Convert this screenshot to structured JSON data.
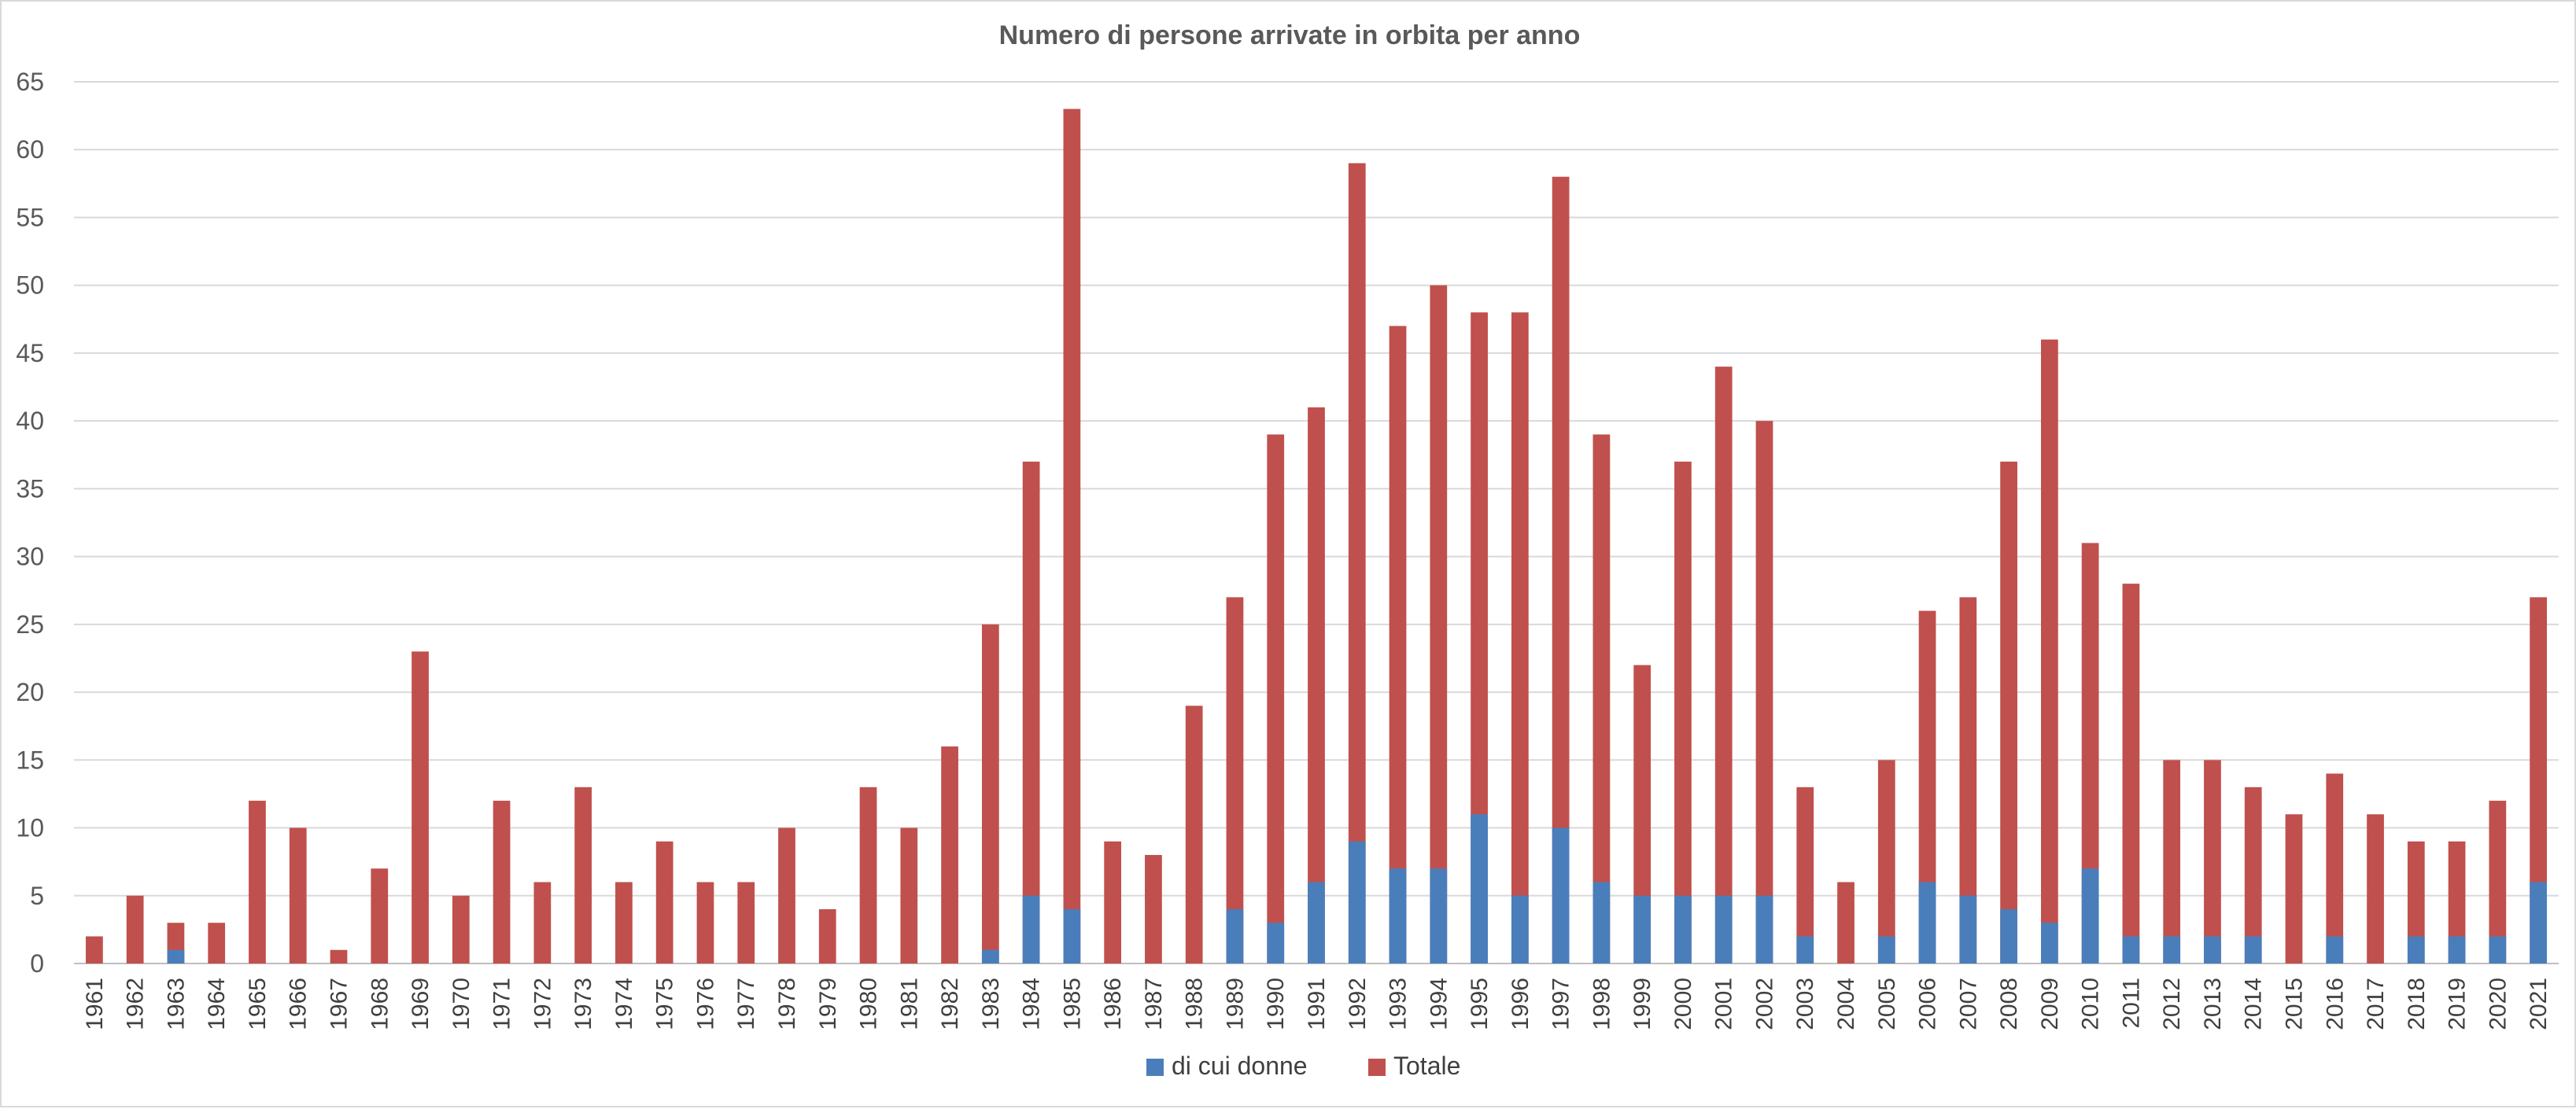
{
  "chart_data": {
    "type": "bar",
    "stacked": "overlap",
    "title": "Numero di persone arrivate in orbita per anno",
    "xlabel": "",
    "ylabel": "",
    "ylim": [
      0,
      65
    ],
    "ytick_step": 5,
    "grid": true,
    "legend_position": "bottom",
    "categories": [
      "1961",
      "1962",
      "1963",
      "1964",
      "1965",
      "1966",
      "1967",
      "1968",
      "1969",
      "1970",
      "1971",
      "1972",
      "1973",
      "1974",
      "1975",
      "1976",
      "1977",
      "1978",
      "1979",
      "1980",
      "1981",
      "1982",
      "1983",
      "1984",
      "1985",
      "1986",
      "1987",
      "1988",
      "1989",
      "1990",
      "1991",
      "1992",
      "1993",
      "1994",
      "1995",
      "1996",
      "1997",
      "1998",
      "1999",
      "2000",
      "2001",
      "2002",
      "2003",
      "2004",
      "2005",
      "2006",
      "2007",
      "2008",
      "2009",
      "2010",
      "2011",
      "2012",
      "2013",
      "2014",
      "2015",
      "2016",
      "2017",
      "2018",
      "2019",
      "2020",
      "2021"
    ],
    "series": [
      {
        "name": "di cui donne",
        "color": "#4a7ebb",
        "values": [
          0,
          0,
          1,
          0,
          0,
          0,
          0,
          0,
          0,
          0,
          0,
          0,
          0,
          0,
          0,
          0,
          0,
          0,
          0,
          0,
          0,
          0,
          1,
          5,
          4,
          0,
          0,
          0,
          4,
          3,
          6,
          9,
          7,
          7,
          11,
          5,
          10,
          6,
          5,
          5,
          5,
          5,
          2,
          0,
          2,
          6,
          5,
          4,
          3,
          7,
          2,
          2,
          2,
          2,
          0,
          2,
          0,
          2,
          2,
          2,
          6
        ]
      },
      {
        "name": "Totale",
        "color": "#c0504d",
        "values": [
          2,
          5,
          3,
          3,
          12,
          10,
          1,
          7,
          23,
          5,
          12,
          6,
          13,
          6,
          9,
          6,
          6,
          10,
          4,
          13,
          10,
          16,
          25,
          37,
          63,
          9,
          8,
          19,
          27,
          39,
          41,
          59,
          47,
          50,
          48,
          48,
          58,
          39,
          22,
          37,
          44,
          40,
          13,
          6,
          15,
          26,
          27,
          37,
          46,
          31,
          28,
          15,
          15,
          13,
          11,
          14,
          11,
          9,
          9,
          12,
          27
        ]
      }
    ]
  }
}
